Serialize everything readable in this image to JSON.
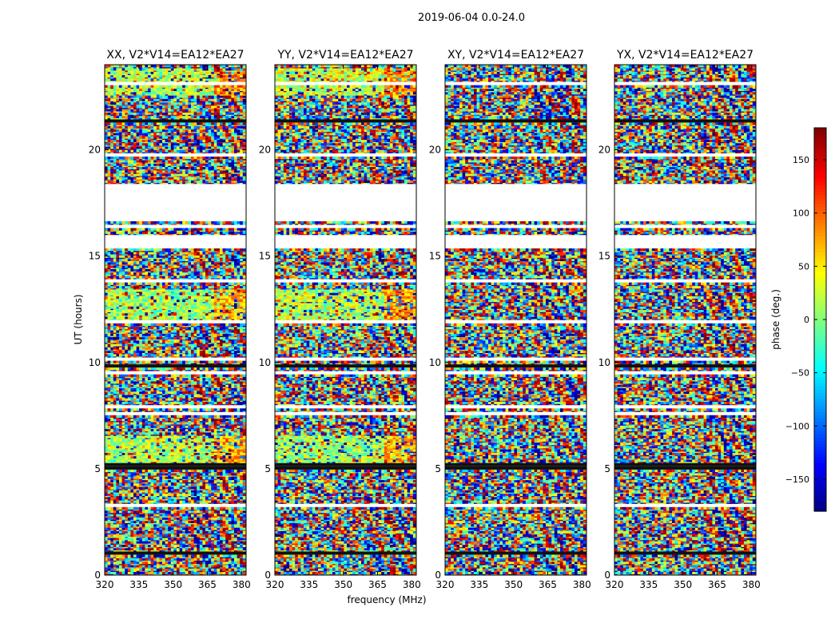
{
  "figure_title": "2019-06-04 0.0-24.0",
  "chart_data": {
    "type": "heatmap",
    "title": "2019-06-04 0.0-24.0",
    "xlabel": "frequency (MHz)",
    "ylabel": "UT (hours)",
    "xlim": [
      320,
      382
    ],
    "ylim": [
      0,
      24
    ],
    "xticks": [
      320,
      335,
      350,
      365,
      380
    ],
    "yticks": [
      0,
      5,
      10,
      15,
      20
    ],
    "panels": [
      {
        "title": "XX, V2*V14=EA12*EA27",
        "pol": "XX",
        "coherent_bands": [
          [
            11.8,
            13.3,
            10
          ],
          [
            5.0,
            6.5,
            15
          ],
          [
            22.5,
            23.8,
            20
          ]
        ],
        "blank_ranges": [
          [
            16.5,
            18.4
          ],
          [
            15.3,
            16.0
          ]
        ]
      },
      {
        "title": "YY, V2*V14=EA12*EA27",
        "pol": "YY",
        "coherent_bands": [
          [
            11.8,
            13.3,
            20
          ],
          [
            5.0,
            6.5,
            10
          ],
          [
            22.5,
            23.8,
            25
          ]
        ],
        "blank_ranges": [
          [
            16.5,
            18.4
          ],
          [
            15.3,
            16.0
          ]
        ]
      },
      {
        "title": "XY, V2*V14=EA12*EA27",
        "pol": "XY",
        "coherent_bands": [],
        "blank_ranges": [
          [
            16.5,
            18.4
          ],
          [
            15.3,
            16.0
          ]
        ]
      },
      {
        "title": "YX, V2*V14=EA12*EA27",
        "pol": "YX",
        "coherent_bands": [],
        "blank_ranges": [
          [
            16.5,
            18.4
          ],
          [
            15.3,
            16.0
          ]
        ]
      }
    ],
    "colorbar": {
      "label": "phase (deg.)",
      "range": [
        -180,
        180
      ],
      "ticks": [
        150,
        100,
        50,
        0,
        -50,
        -100,
        -150
      ],
      "tick_labels": [
        "150",
        "100",
        "50",
        "0",
        "−50",
        "−100",
        "−150"
      ],
      "colormap": "jet"
    }
  }
}
